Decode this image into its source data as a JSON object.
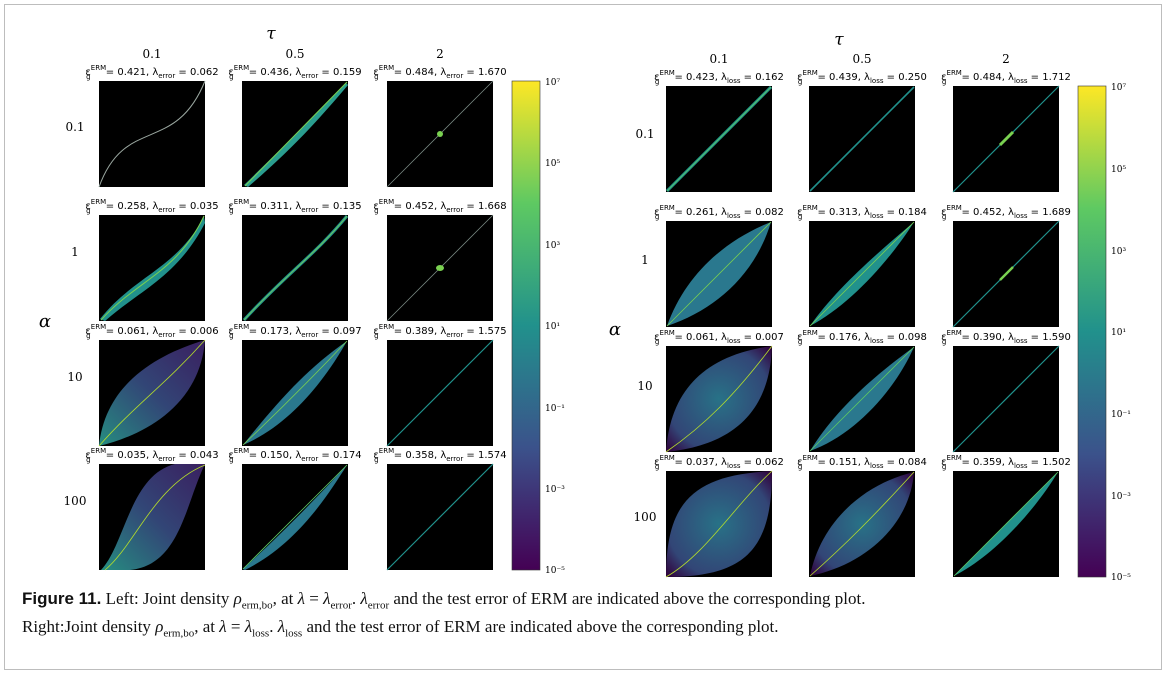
{
  "figure": {
    "caption_label": "Figure 11.",
    "caption_left_a": "Left: Joint density ",
    "caption_left_b": ", at ",
    "caption_left_c": " and the test error of ERM are indicated above the corresponding plot.",
    "caption_right_a": "Right:Joint density ",
    "caption_right_b": ", at ",
    "caption_right_c": " and the test error of ERM are indicated above the corresponding plot.",
    "rho_sub": "erm,bo",
    "lambda_error_sub": "error",
    "lambda_loss_sub": "loss"
  },
  "axes": {
    "tau_symbol": "τ",
    "alpha_symbol": "α",
    "tau_values": [
      "0.1",
      "0.5",
      "2"
    ],
    "alpha_values": [
      "0.1",
      "1",
      "10",
      "100"
    ]
  },
  "colorbar": {
    "ticks": [
      "10⁷",
      "10⁵",
      "10³",
      "10¹",
      "10⁻¹",
      "10⁻³",
      "10⁻⁵"
    ],
    "colors": [
      "#fde725",
      "#5ec962",
      "#21918c",
      "#3b528b",
      "#440154"
    ]
  },
  "left_panel": {
    "lambda_name": "error",
    "titles": [
      [
        "0.421",
        "0.062"
      ],
      [
        "0.436",
        "0.159"
      ],
      [
        "0.484",
        "1.670"
      ],
      [
        "0.258",
        "0.035"
      ],
      [
        "0.311",
        "0.135"
      ],
      [
        "0.452",
        "1.668"
      ],
      [
        "0.061",
        "0.006"
      ],
      [
        "0.173",
        "0.097"
      ],
      [
        "0.389",
        "1.575"
      ],
      [
        "0.035",
        "0.043"
      ],
      [
        "0.150",
        "0.174"
      ],
      [
        "0.358",
        "1.574"
      ]
    ]
  },
  "right_panel": {
    "lambda_name": "loss",
    "titles": [
      [
        "0.423",
        "0.162"
      ],
      [
        "0.439",
        "0.250"
      ],
      [
        "0.484",
        "1.712"
      ],
      [
        "0.261",
        "0.082"
      ],
      [
        "0.313",
        "0.184"
      ],
      [
        "0.452",
        "1.689"
      ],
      [
        "0.061",
        "0.007"
      ],
      [
        "0.176",
        "0.098"
      ],
      [
        "0.390",
        "1.590"
      ],
      [
        "0.037",
        "0.062"
      ],
      [
        "0.151",
        "0.084"
      ],
      [
        "0.359",
        "1.502"
      ]
    ]
  }
}
